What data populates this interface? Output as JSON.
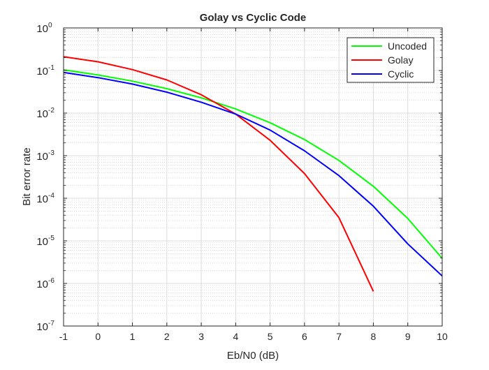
{
  "chart_data": {
    "type": "line",
    "title": "Golay vs Cyclic Code",
    "xlabel": "Eb/N0 (dB)",
    "ylabel": "Bit error rate",
    "yscale": "log",
    "xlim": [
      -1,
      10
    ],
    "ylim": [
      1e-07,
      1
    ],
    "grid": true,
    "minor_grid": true,
    "legend_position": "top-right",
    "x_ticks": [
      "-1",
      "0",
      "1",
      "2",
      "3",
      "4",
      "5",
      "6",
      "7",
      "8",
      "9",
      "10"
    ],
    "y_ticks": [
      {
        "base": "10",
        "exp": "0"
      },
      {
        "base": "10",
        "exp": "-1"
      },
      {
        "base": "10",
        "exp": "-2"
      },
      {
        "base": "10",
        "exp": "-3"
      },
      {
        "base": "10",
        "exp": "-4"
      },
      {
        "base": "10",
        "exp": "-5"
      },
      {
        "base": "10",
        "exp": "-6"
      },
      {
        "base": "10",
        "exp": "-7"
      }
    ],
    "series": [
      {
        "name": "Uncoded",
        "color": "#00ff00",
        "x": [
          -1,
          0,
          1,
          2,
          3,
          4,
          5,
          6,
          7,
          8,
          9,
          10
        ],
        "y": [
          0.104,
          0.0786,
          0.0563,
          0.0375,
          0.0229,
          0.0125,
          0.00595,
          0.00239,
          0.000773,
          0.000191,
          3.36e-05,
          3.87e-06
        ]
      },
      {
        "name": "Golay",
        "color": "#ff0000",
        "x": [
          -1,
          0,
          1,
          2,
          3,
          4,
          5,
          6,
          7,
          8
        ],
        "y": [
          0.21,
          0.16,
          0.105,
          0.06,
          0.027,
          0.0095,
          0.0023,
          0.00038,
          3.5e-05,
          6.5e-07
        ]
      },
      {
        "name": "Cyclic",
        "color": "#0000ff",
        "x": [
          -1,
          0,
          1,
          2,
          3,
          4,
          5,
          6,
          7,
          8,
          9,
          10
        ],
        "y": [
          0.09,
          0.068,
          0.048,
          0.031,
          0.018,
          0.0095,
          0.004,
          0.0013,
          0.00034,
          6.5e-05,
          8.5e-06,
          1.5e-06
        ]
      }
    ]
  }
}
